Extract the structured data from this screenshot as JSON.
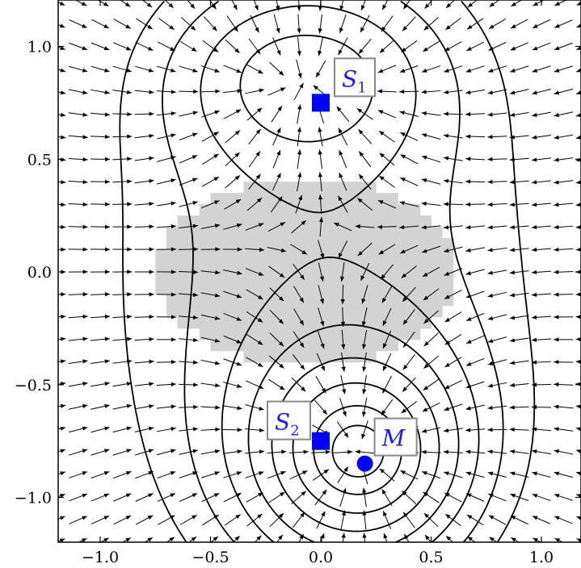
{
  "chart_data": {
    "type": "quiver-contour",
    "xlim": [
      -1.2,
      1.2
    ],
    "ylim": [
      -1.2,
      1.2
    ],
    "x_ticks": [
      -1.0,
      -0.5,
      0.0,
      0.5,
      1.0
    ],
    "x_tick_labels": [
      "−1.0",
      "−0.5",
      "0.0",
      "0.5",
      "1.0"
    ],
    "y_ticks": [
      -1.0,
      -0.5,
      0.0,
      0.5,
      1.0
    ],
    "y_tick_labels": [
      "−1.0",
      "−0.5",
      "0.0",
      "0.5",
      "1.0"
    ],
    "minimum": {
      "label": "M",
      "x": 0.2,
      "y": -0.85
    },
    "saddle_points": [
      {
        "label": "S",
        "subscript": "1",
        "x": 0.0,
        "y": 0.75
      },
      {
        "label": "S",
        "subscript": "2",
        "x": 0.0,
        "y": -0.75
      }
    ],
    "shaded_region": {
      "center": [
        -0.06,
        0.0
      ],
      "radius_x": 0.68,
      "radius_y": 0.42
    },
    "colors": {
      "marker": "#0000ff",
      "label_text": "#1a1aff",
      "region": "#d3d3d3",
      "contour": "#000000",
      "arrow": "#000000",
      "label_box_border": "#888888"
    }
  }
}
